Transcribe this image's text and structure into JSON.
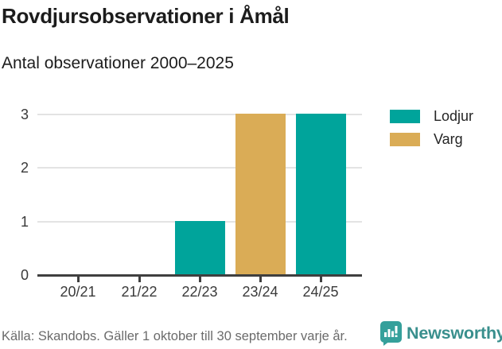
{
  "header": {
    "title": "Rovdjursobservationer i Åmål",
    "subtitle": "Antal observationer 2000–2025"
  },
  "chart_data": {
    "type": "bar",
    "categories": [
      "20/21",
      "21/22",
      "22/23",
      "23/24",
      "24/25"
    ],
    "series": [
      {
        "name": "Lodjur",
        "color": "#00a49b",
        "values": [
          0,
          0,
          1,
          0,
          3
        ]
      },
      {
        "name": "Varg",
        "color": "#daac56",
        "values": [
          0,
          0,
          0,
          3,
          0
        ]
      }
    ],
    "title": "Rovdjursobservationer i Åmål",
    "subtitle": "Antal observationer 2000–2025",
    "xlabel": "",
    "ylabel": "",
    "ylim": [
      0,
      3
    ],
    "yticks": [
      0,
      1,
      2,
      3
    ],
    "grid": true,
    "legend_position": "right"
  },
  "footer": {
    "source": "Källa: Skandobs. Gäller 1 oktober till 30 september varje år.",
    "brand": "Newsworthy",
    "brand_icon": "newsworthy-chart-speech-bubble-icon"
  },
  "colors": {
    "lodjur": "#00a49b",
    "varg": "#daac56",
    "axis": "#3f3f3f",
    "grid": "#e3e3e3",
    "title_text": "#1c1c1c",
    "muted_text": "#6b6b6b",
    "brand_teal": "#398f8d"
  }
}
